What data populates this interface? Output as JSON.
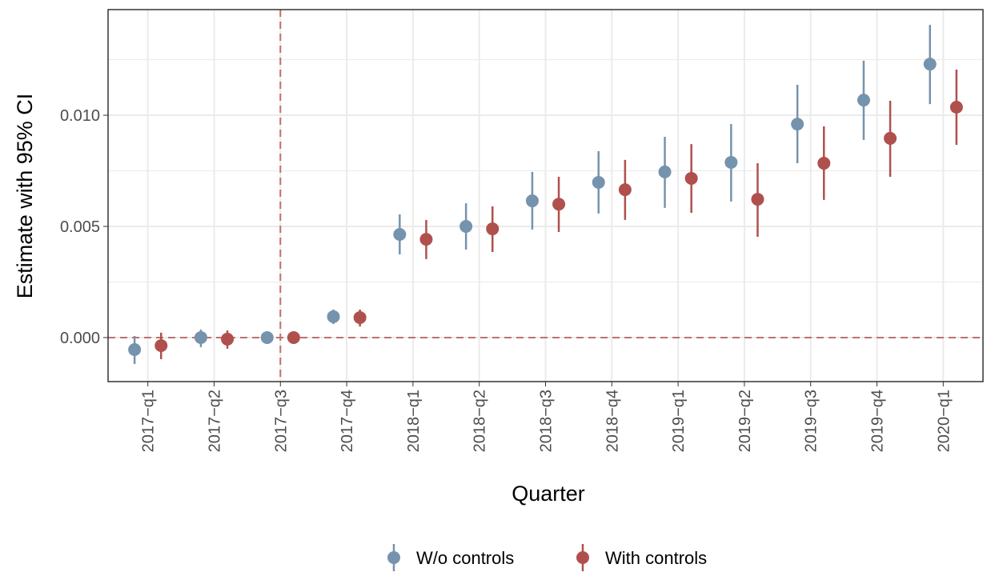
{
  "chart_data": {
    "type": "pointrange",
    "x_label": "Quarter",
    "y_label": "Estimate with 95% CI",
    "categories": [
      "2017−q1",
      "2017−q2",
      "2017−q3",
      "2017−q4",
      "2018−q1",
      "2018−q2",
      "2018−q3",
      "2018−q4",
      "2019−q1",
      "2019−q2",
      "2019−q3",
      "2019−q4",
      "2020−q1"
    ],
    "series": [
      {
        "name": "W/o controls",
        "color": "#7593ad",
        "values": [
          -0.00054,
          0,
          0,
          0.00094,
          0.00464,
          0.005,
          0.00615,
          0.00698,
          0.00745,
          0.00788,
          0.0096,
          0.01068,
          0.0123
        ],
        "lower": [
          -0.00119,
          -0.00043,
          -1e-05,
          0.00061,
          0.00374,
          0.00396,
          0.00486,
          0.00558,
          0.00583,
          0.00612,
          0.00784,
          0.00889,
          0.0105
        ],
        "upper": [
          7e-05,
          0.00036,
          1e-05,
          0.00126,
          0.00554,
          0.00604,
          0.00745,
          0.00838,
          0.00903,
          0.0096,
          0.01137,
          0.01245,
          0.01406
        ]
      },
      {
        "name": "With controls",
        "color": "#b0504d",
        "values": [
          -0.00036,
          -7e-05,
          0,
          0.0009,
          0.00442,
          0.00489,
          0.006,
          0.00665,
          0.00716,
          0.00622,
          0.00784,
          0.00896,
          0.01036
        ],
        "lower": [
          -0.00097,
          -0.0005,
          -1e-05,
          0.0005,
          0.00353,
          0.00385,
          0.00475,
          0.00529,
          0.00561,
          0.00453,
          0.00619,
          0.00723,
          0.00867
        ],
        "upper": [
          0.00022,
          0.00032,
          1e-05,
          0.00126,
          0.00529,
          0.0059,
          0.00723,
          0.00799,
          0.0087,
          0.00784,
          0.0095,
          0.01065,
          0.01205
        ]
      }
    ],
    "ylim": [
      -0.00198,
      0.01475
    ],
    "yticks": [
      {
        "value": 0,
        "label": "0.000"
      },
      {
        "value": 0.005,
        "label": "0.005"
      },
      {
        "value": 0.01,
        "label": "0.010"
      }
    ],
    "minor_yticks": [
      0.0025,
      0.0075,
      0.0125
    ],
    "hline": 0,
    "vline": "2017−q3",
    "grid": true,
    "legend": "bottom"
  }
}
